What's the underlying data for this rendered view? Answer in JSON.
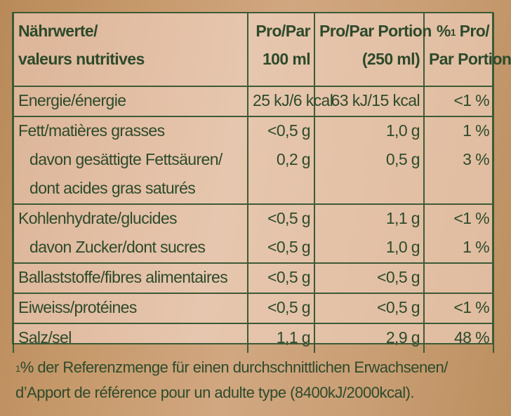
{
  "header": {
    "col1_line1": "Nährwerte/",
    "col1_line2": "valeurs nutritives",
    "col2_line1": "Pro/Par",
    "col2_line2": "100 ml",
    "col3_line1": "Pro/Par Portion",
    "col3_line2": "(250 ml)",
    "col4_sup": "1",
    "col4_line1_a": "%",
    "col4_line1_b": " Pro/",
    "col4_line2": "Par Portion"
  },
  "rows": [
    {
      "label": "Energie/énergie",
      "per100": "25 kJ/6 kcal",
      "portion": "63 kJ/15 kcal",
      "pct": "<1 %"
    },
    {
      "label": "Fett/matières grasses",
      "per100": "<0,5 g",
      "portion": "1,0 g",
      "pct": "1 %"
    },
    {
      "label": "davon gesättigte Fettsäuren/",
      "per100": "0,2 g",
      "portion": "0,5 g",
      "pct": "3 %"
    },
    {
      "label": "dont acides gras saturés",
      "per100": "",
      "portion": "",
      "pct": ""
    },
    {
      "label": "Kohlenhydrate/glucides",
      "per100": "<0,5 g",
      "portion": "1,1 g",
      "pct": "<1 %"
    },
    {
      "label": "davon Zucker/dont sucres",
      "per100": "<0,5 g",
      "portion": "1,0 g",
      "pct": "1 %"
    },
    {
      "label": "Ballaststoffe/fibres alimentaires",
      "per100": "<0,5 g",
      "portion": "<0,5 g",
      "pct": ""
    },
    {
      "label": "Eiweiss/protéines",
      "per100": "<0,5 g",
      "portion": "<0,5 g",
      "pct": "<1 %"
    },
    {
      "label": "Salz/sel",
      "per100": "1,1 g",
      "portion": "2,9 g",
      "pct": "48 %"
    }
  ],
  "footnote": {
    "sup": "1",
    "line1": "% der Referenzmenge für einen durchschnittlichen Erwachsenen/",
    "line2": "d’Apport de référence pour un adulte type (8400kJ/2000kcal)."
  }
}
